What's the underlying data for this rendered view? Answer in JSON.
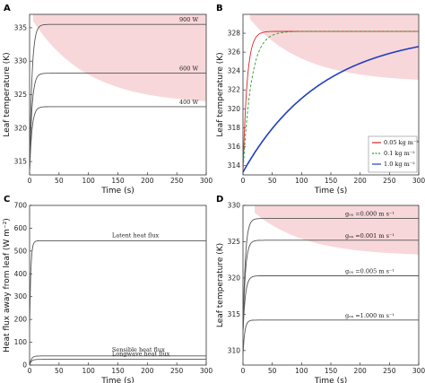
{
  "chart_data": [
    {
      "panel": "A",
      "type": "line",
      "xlabel": "Time (s)",
      "ylabel": "Leaf temperature (K)",
      "xlim": [
        0,
        300
      ],
      "ylim": [
        313,
        337
      ],
      "xticks": [
        "0",
        "50",
        "100",
        "150",
        "200",
        "250",
        "300"
      ],
      "yticks": [
        "315",
        "320",
        "325",
        "330",
        "335"
      ],
      "shade": {
        "color": "#f8d7da",
        "from_x": 6,
        "to_x": 300,
        "upper": 337,
        "lower_start": 336,
        "lower_end": 323.5
      },
      "series": [
        {
          "name": "900 W",
          "plateau": 335.5,
          "start": 313.5,
          "tau": 4,
          "style": "solid",
          "color": "#555555"
        },
        {
          "name": "600 W",
          "plateau": 328.2,
          "start": 313.5,
          "tau": 4,
          "style": "solid",
          "color": "#555555"
        },
        {
          "name": "400 W",
          "plateau": 323.2,
          "start": 313.5,
          "tau": 4,
          "style": "solid",
          "color": "#555555"
        }
      ]
    },
    {
      "panel": "B",
      "type": "line",
      "xlabel": "Time (s)",
      "ylabel": "Leaf temperature (K)",
      "xlim": [
        0,
        300
      ],
      "ylim": [
        313,
        330
      ],
      "xticks": [
        "0",
        "50",
        "100",
        "150",
        "200",
        "250",
        "300"
      ],
      "yticks": [
        "314",
        "316",
        "318",
        "320",
        "322",
        "324",
        "326",
        "328"
      ],
      "shade": {
        "color": "#f8d7da",
        "from_x": 12,
        "to_x": 300,
        "upper": 330,
        "lower_start": 329.5,
        "lower_end": 322.8
      },
      "legend_position": "bottom-right",
      "series": [
        {
          "name": "0.05 kg m⁻²",
          "plateau": 328.2,
          "start": 313.3,
          "tau": 7,
          "style": "solid",
          "color": "#d62728"
        },
        {
          "name": "0.1 kg m⁻²",
          "plateau": 328.2,
          "start": 313.3,
          "tau": 14,
          "style": "dashed",
          "color": "#2ca02c"
        },
        {
          "name": "1.0 kg m⁻²",
          "plateau": 328.2,
          "start": 313.3,
          "tau": 135,
          "style": "solid",
          "color": "#1f3fbf"
        }
      ]
    },
    {
      "panel": "C",
      "type": "line",
      "xlabel": "Time (s)",
      "ylabel": "Heat flux away from leaf (W m⁻²)",
      "xlim": [
        0,
        300
      ],
      "ylim": [
        0,
        700
      ],
      "xticks": [
        "0",
        "50",
        "100",
        "150",
        "200",
        "250",
        "300"
      ],
      "yticks": [
        "0",
        "100",
        "200",
        "300",
        "400",
        "500",
        "600",
        "700"
      ],
      "series": [
        {
          "name": "Latent heat flux",
          "plateau": 545,
          "start": 160,
          "tau": 2,
          "style": "solid",
          "color": "#555555"
        },
        {
          "name": "Sensible heat flux",
          "plateau": 40,
          "start": 0,
          "tau": 3,
          "style": "solid",
          "color": "#555555"
        },
        {
          "name": "Longwave heat flux",
          "plateau": 25,
          "start": 0,
          "tau": 3,
          "style": "solid",
          "color": "#555555"
        }
      ]
    },
    {
      "panel": "D",
      "type": "line",
      "xlabel": "Time (s)",
      "ylabel": "Leaf temperature (K)",
      "xlim": [
        0,
        300
      ],
      "ylim": [
        308,
        330
      ],
      "xticks": [
        "0",
        "50",
        "100",
        "150",
        "200",
        "250",
        "300"
      ],
      "yticks": [
        "310",
        "315",
        "320",
        "325",
        "330"
      ],
      "shade": {
        "color": "#f8d7da",
        "from_x": 20,
        "to_x": 300,
        "upper": 330,
        "lower_start": 329,
        "lower_end": 323
      },
      "series": [
        {
          "name": "gₒₐ =0.000 m s⁻¹",
          "plateau": 328.2,
          "start": 312.5,
          "tau": 4,
          "style": "solid",
          "color": "#555555"
        },
        {
          "name": "gₒₐ =0.001 m s⁻¹",
          "plateau": 325.2,
          "start": 312.5,
          "tau": 4,
          "style": "solid",
          "color": "#555555"
        },
        {
          "name": "gₒₐ =0.005 m s⁻¹",
          "plateau": 320.3,
          "start": 312.5,
          "tau": 4,
          "style": "solid",
          "color": "#555555"
        },
        {
          "name": "gₒₐ =1.000 m s⁻¹",
          "plateau": 314.2,
          "start": 309.5,
          "tau": 3,
          "style": "solid",
          "color": "#555555"
        }
      ]
    }
  ]
}
